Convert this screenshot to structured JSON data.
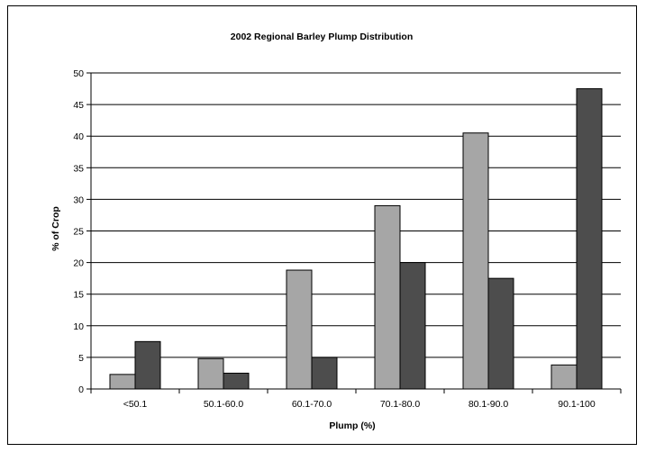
{
  "chart_data": {
    "type": "bar",
    "title": "2002 Regional Barley Plump Distribution",
    "xlabel": "Plump (%)",
    "ylabel": "% of Crop",
    "categories": [
      "<50.1",
      "50.1-60.0",
      "60.1-70.0",
      "70.1-80.0",
      "80.1-90.0",
      "90.1-100"
    ],
    "series": [
      {
        "values": [
          2.3,
          4.8,
          18.8,
          29.0,
          40.5,
          3.8
        ],
        "color": "#a6a6a6"
      },
      {
        "values": [
          7.5,
          2.5,
          5.0,
          20.0,
          17.5,
          47.5
        ],
        "color": "#4d4d4d"
      }
    ],
    "ylim": [
      0,
      50
    ],
    "yticks": [
      0,
      5,
      10,
      15,
      20,
      25,
      30,
      35,
      40,
      45,
      50
    ],
    "grid": true,
    "legend": "none"
  }
}
